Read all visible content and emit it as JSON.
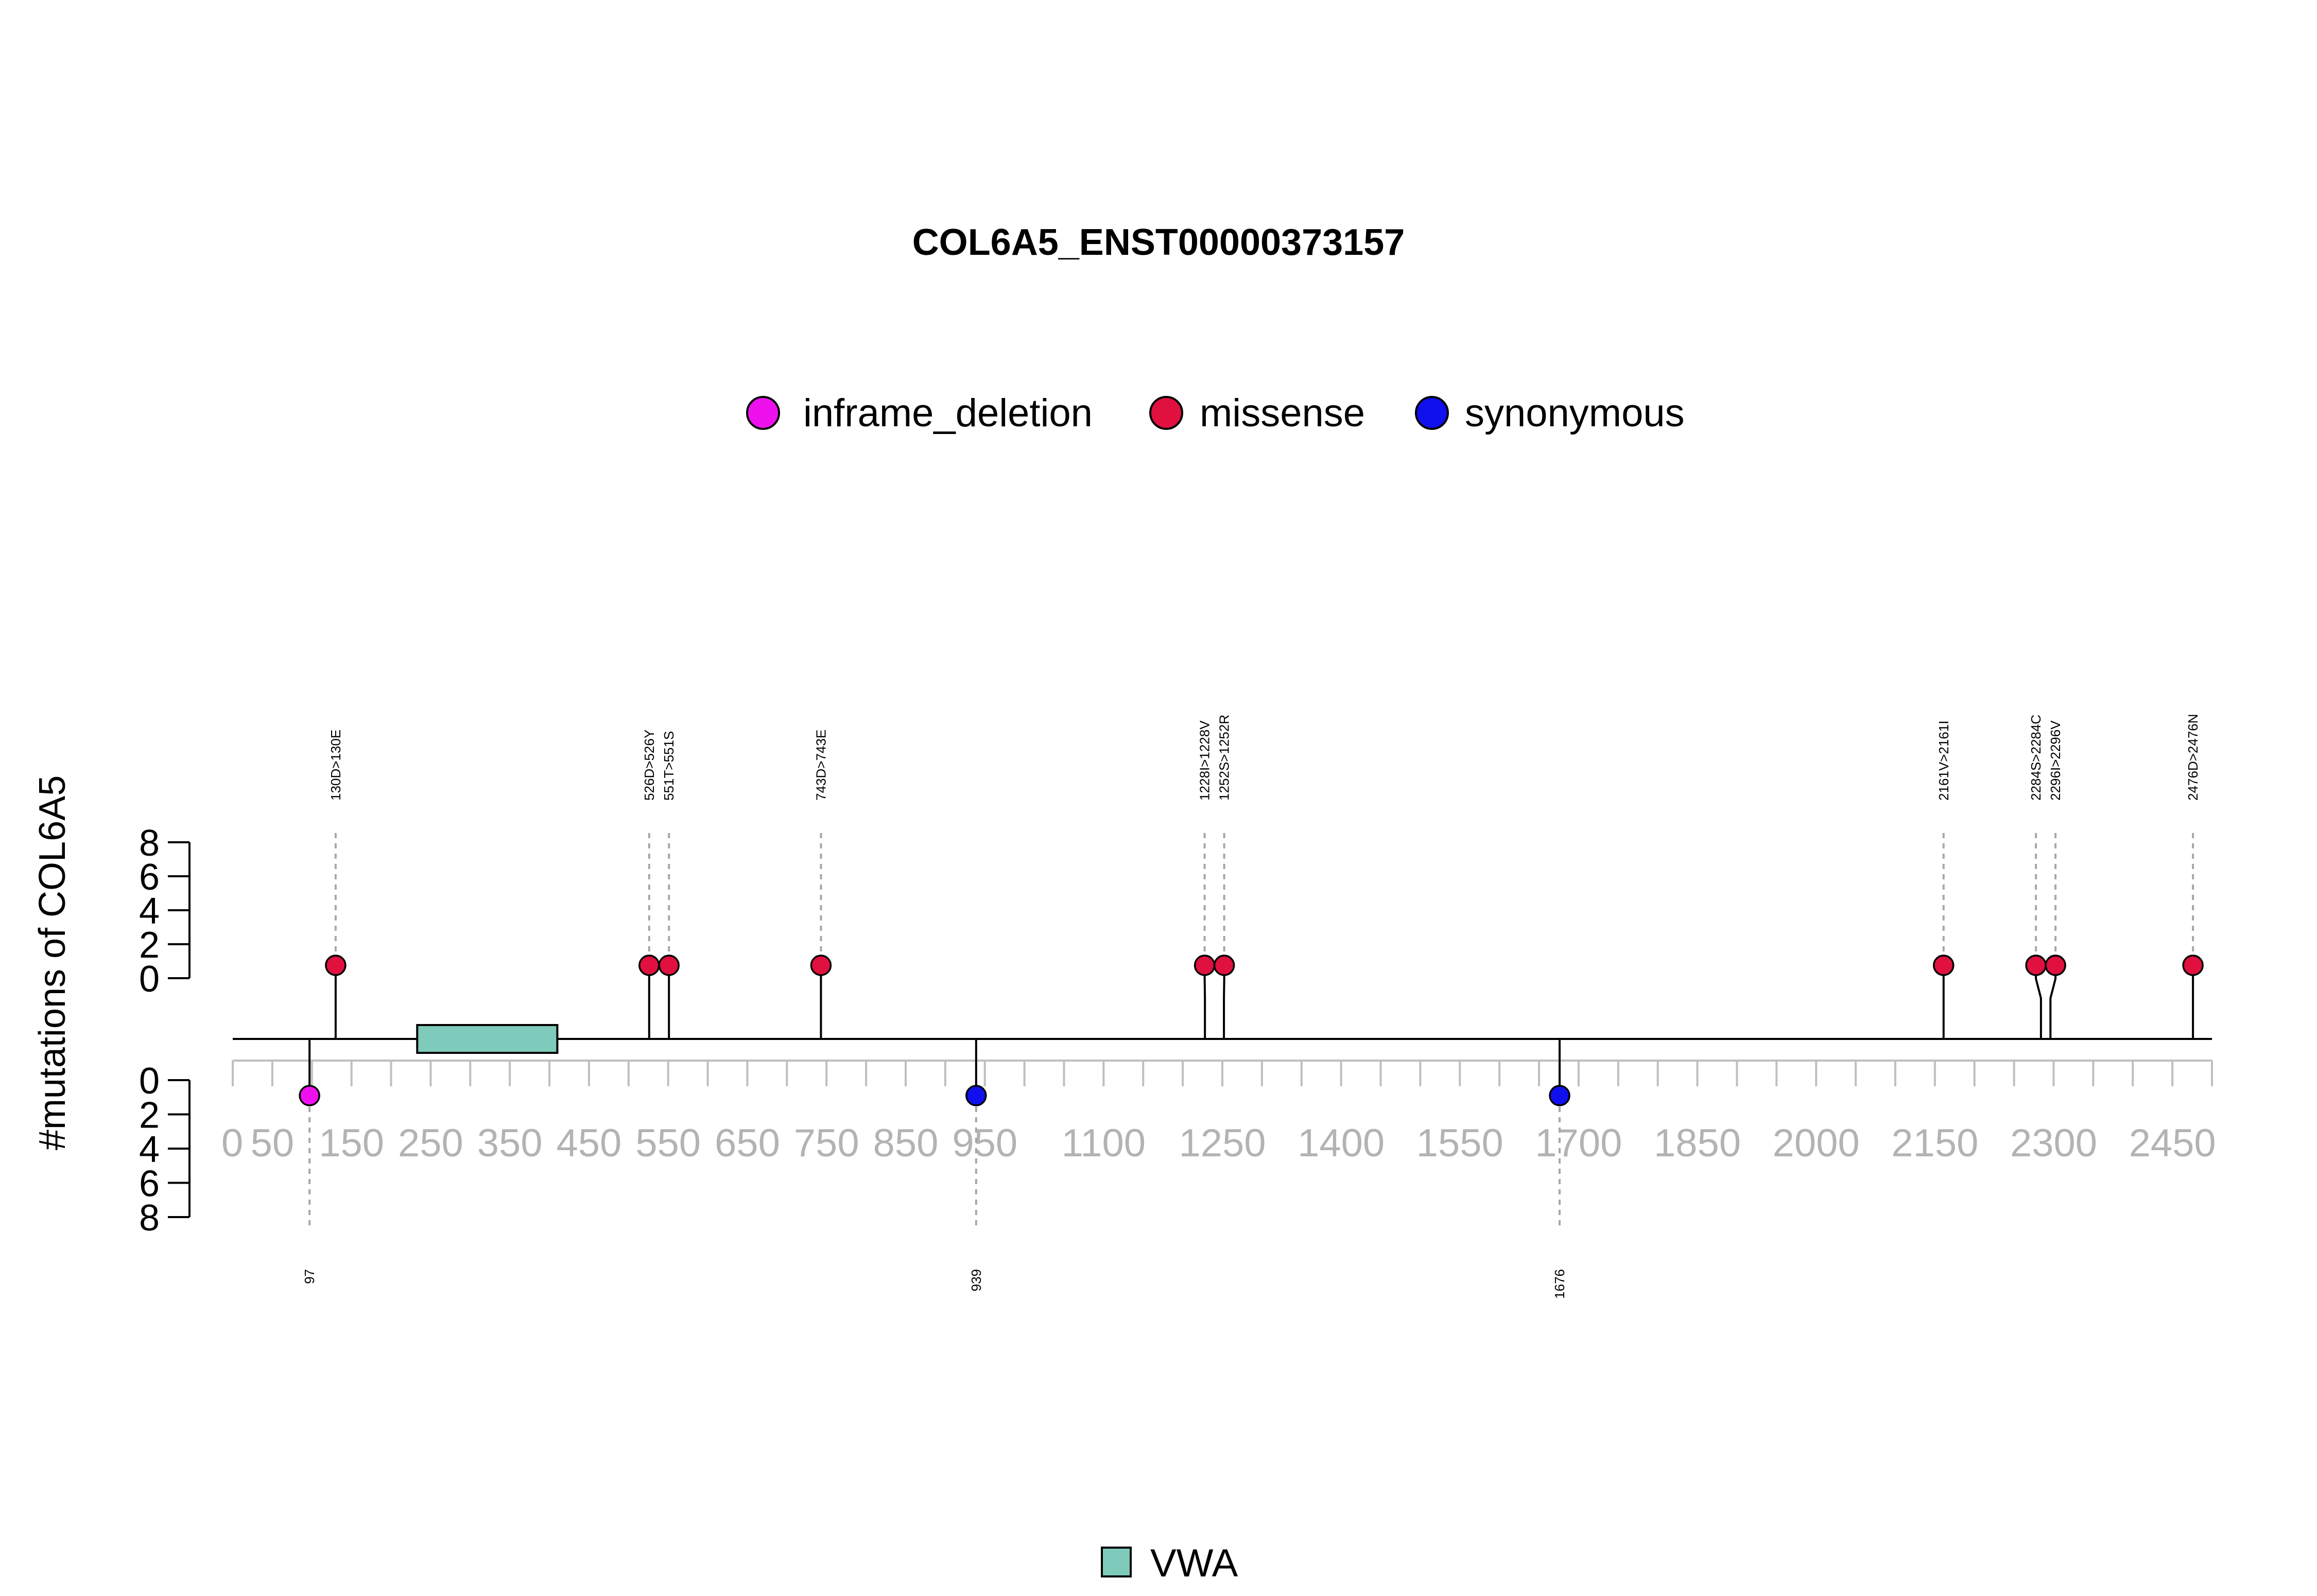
{
  "chart_data": {
    "type": "lollipop",
    "title": "COL6A5_ENST00000373157",
    "ylabel": "#mutations of COL6A5",
    "xlim": [
      0,
      2500
    ],
    "x_ticks": [
      0,
      50,
      150,
      250,
      350,
      450,
      550,
      650,
      750,
      850,
      950,
      1100,
      1250,
      1400,
      1550,
      1700,
      1850,
      2000,
      2150,
      2300,
      2450
    ],
    "y_ticks_top": [
      0,
      2,
      4,
      6,
      8
    ],
    "y_ticks_bottom": [
      0,
      2,
      4,
      6,
      8
    ],
    "ylim": [
      0,
      8
    ],
    "legend": [
      {
        "name": "inframe_deletion",
        "color": "#ee11ee"
      },
      {
        "name": "missense",
        "color": "#e0103f"
      },
      {
        "name": "synonymous",
        "color": "#1010ee"
      }
    ],
    "domain_legend": [
      {
        "name": "VWA",
        "color": "#7fcbbb"
      }
    ],
    "domains": [
      {
        "name": "VWA",
        "start": 233,
        "end": 410
      }
    ],
    "mutations_top": [
      {
        "label": "130D>130E",
        "position": 130,
        "count": 1,
        "type": "missense"
      },
      {
        "label": "526D>526Y",
        "position": 526,
        "count": 1,
        "type": "missense"
      },
      {
        "label": "551T>551S",
        "position": 551,
        "count": 1,
        "type": "missense"
      },
      {
        "label": "743D>743E",
        "position": 743,
        "count": 1,
        "type": "missense"
      },
      {
        "label": "1228I>1228V",
        "position": 1228,
        "count": 1,
        "type": "missense"
      },
      {
        "label": "1252S>1252R",
        "position": 1252,
        "count": 1,
        "type": "missense"
      },
      {
        "label": "2161V>2161I",
        "position": 2161,
        "count": 1,
        "type": "missense"
      },
      {
        "label": "2284S>2284C",
        "position": 2284,
        "count": 1,
        "type": "missense"
      },
      {
        "label": "2296I>2296V",
        "position": 2296,
        "count": 1,
        "type": "missense"
      },
      {
        "label": "2476D>2476N",
        "position": 2476,
        "count": 1,
        "type": "missense"
      }
    ],
    "mutations_bottom": [
      {
        "label": "97",
        "position": 97,
        "count": 1,
        "type": "inframe_deletion"
      },
      {
        "label": "939",
        "position": 939,
        "count": 1,
        "type": "synonymous"
      },
      {
        "label": "1676",
        "position": 1676,
        "count": 1,
        "type": "synonymous"
      }
    ]
  }
}
